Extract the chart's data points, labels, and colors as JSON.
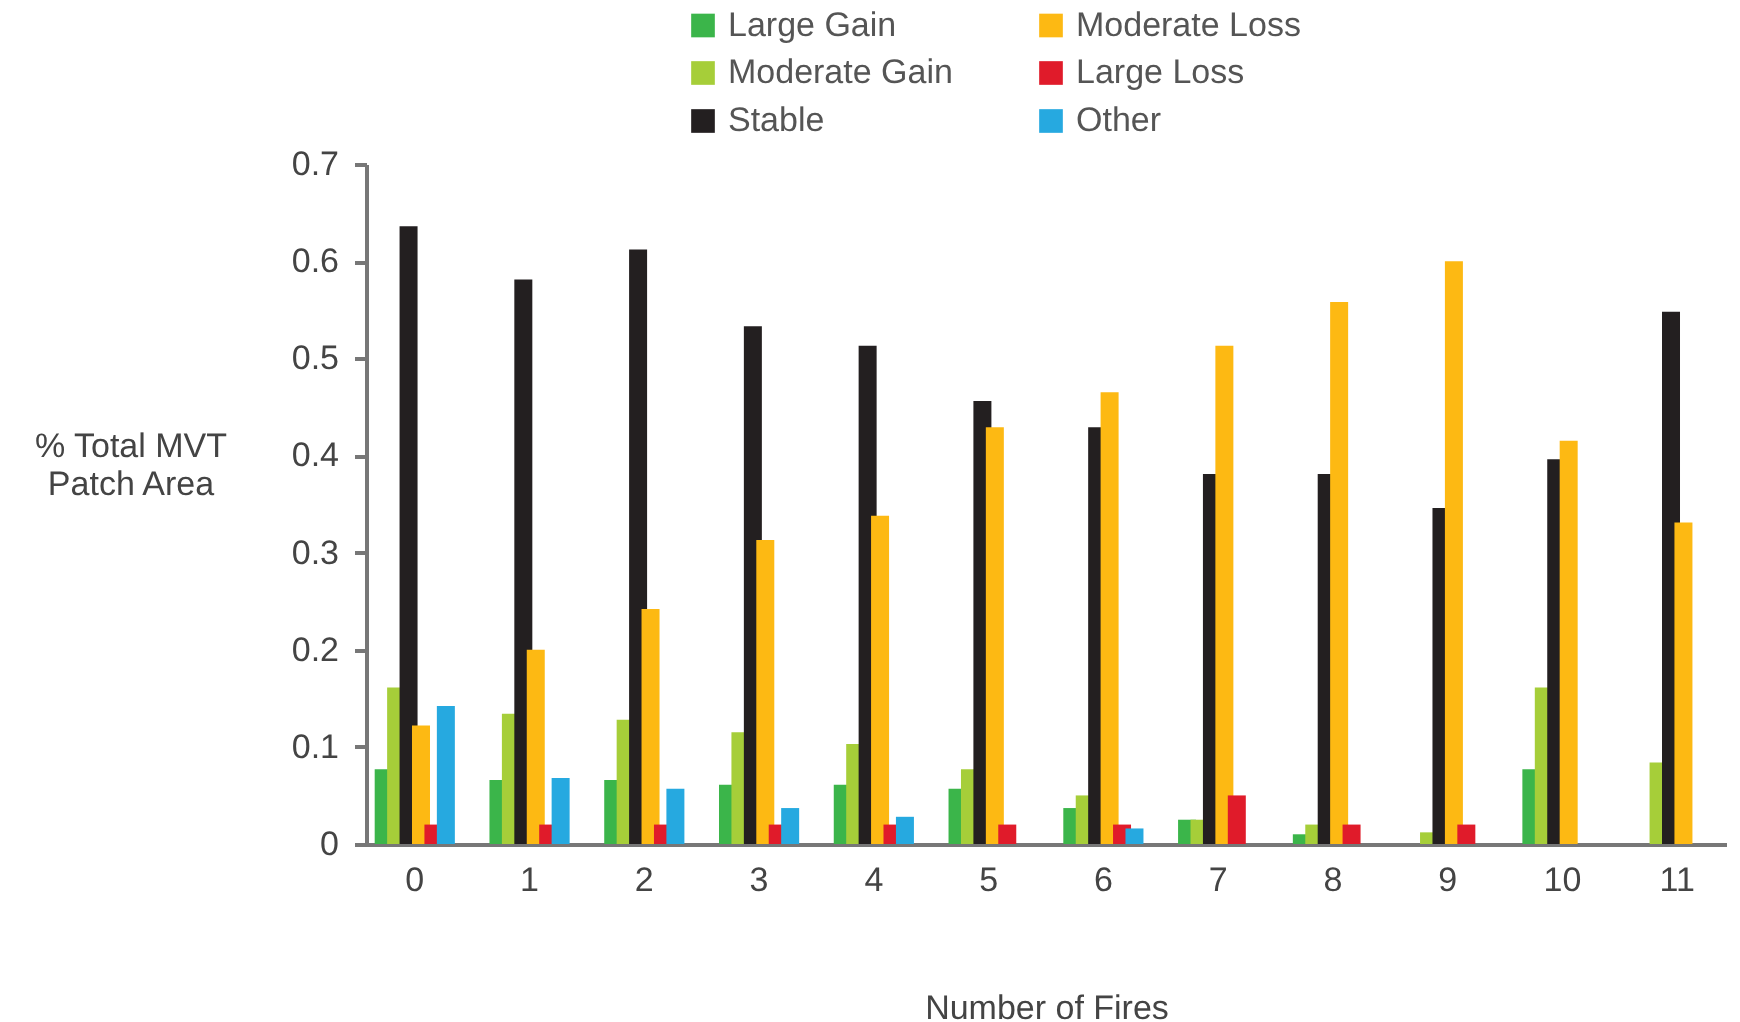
{
  "chart_data": {
    "type": "bar",
    "xlabel": "Number of Fires",
    "ylabel": "% Total MVT Patch Area",
    "categories": [
      "0",
      "1",
      "2",
      "3",
      "4",
      "5",
      "6",
      "7",
      "8",
      "9",
      "10",
      "11"
    ],
    "series": [
      {
        "name": "Large Gain",
        "color": "#3bb54a",
        "values": [
          0.077,
          0.066,
          0.066,
          0.061,
          0.061,
          0.057,
          0.037,
          0.025,
          0.01,
          null,
          0.077,
          null
        ]
      },
      {
        "name": "Moderate Gain",
        "color": "#a6ce39",
        "values": [
          0.161,
          0.134,
          0.128,
          0.115,
          0.103,
          0.077,
          0.05,
          0.025,
          0.02,
          0.012,
          0.161,
          0.084
        ]
      },
      {
        "name": "Stable",
        "color": "#231f20",
        "values": [
          0.636,
          0.581,
          0.612,
          0.533,
          0.513,
          0.456,
          0.429,
          0.381,
          0.381,
          0.346,
          0.396,
          0.548
        ]
      },
      {
        "name": "Moderate Loss",
        "color": "#fdb913",
        "values": [
          0.122,
          0.2,
          0.242,
          0.313,
          0.338,
          0.429,
          0.465,
          0.513,
          0.558,
          0.6,
          0.415,
          0.331
        ]
      },
      {
        "name": "Large Loss",
        "color": "#e01b2a",
        "values": [
          0.02,
          0.02,
          0.02,
          0.02,
          0.02,
          0.02,
          0.02,
          0.05,
          0.02,
          0.02,
          null,
          null
        ]
      },
      {
        "name": "Other",
        "color": "#26a9e0",
        "values": [
          0.142,
          0.068,
          0.057,
          0.037,
          0.028,
          null,
          0.016,
          null,
          null,
          null,
          null,
          null
        ]
      }
    ],
    "ylim": [
      0,
      0.7
    ],
    "yticks": [
      0,
      0.1,
      0.2,
      0.3,
      0.4,
      0.5,
      0.6,
      0.7
    ],
    "grid": false,
    "legend": "top"
  }
}
